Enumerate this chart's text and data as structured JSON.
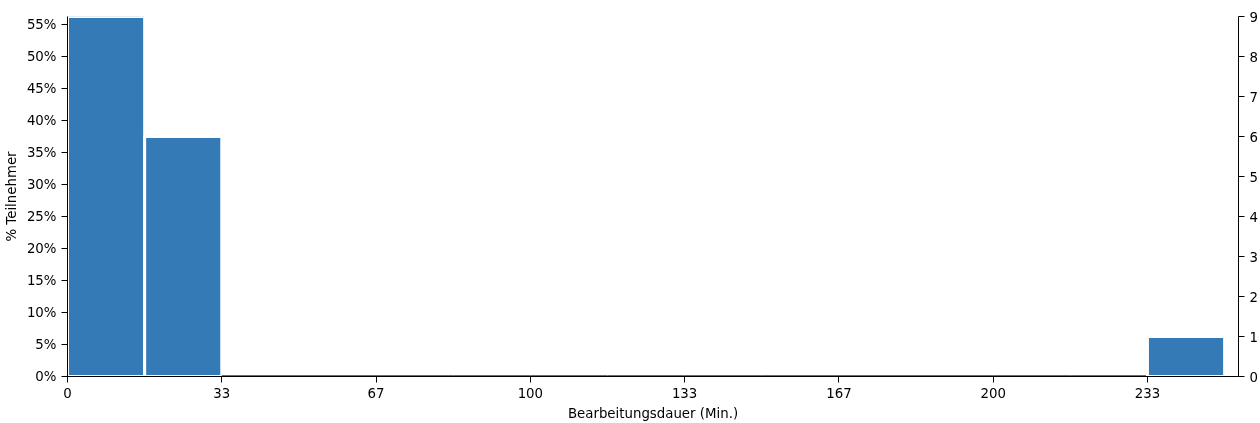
{
  "chart_data": {
    "type": "histogram",
    "xlabel": "Bearbeitungsdauer (Min.)",
    "ylabel": "% Teilnehmer",
    "bins": [
      0,
      16.67,
      33.33,
      50,
      66.67,
      83.33,
      100,
      116.67,
      133.33,
      150,
      166.67,
      183.33,
      200,
      216.67,
      233.33,
      250
    ],
    "values": [
      56.25,
      37.5,
      0,
      0,
      0,
      0,
      0,
      0,
      0,
      0,
      0,
      0,
      0,
      0,
      6.25
    ],
    "color": "#337ab7",
    "xlim": [
      0,
      253
    ],
    "xticks": [
      0,
      {
        "value": 33.33,
        "label": "33"
      },
      {
        "value": 66.67,
        "label": "67"
      },
      100,
      {
        "value": 133.33,
        "label": "133"
      },
      {
        "value": 166.67,
        "label": "167"
      },
      200,
      {
        "value": 233.33,
        "label": "233"
      }
    ],
    "ylim": [
      0,
      56.25
    ],
    "yticks": [
      {
        "value": 0,
        "label": "0%"
      },
      {
        "value": 5,
        "label": "5%"
      },
      {
        "value": 10,
        "label": "10%"
      },
      {
        "value": 15,
        "label": "15%"
      },
      {
        "value": 20,
        "label": "20%"
      },
      {
        "value": 25,
        "label": "25%"
      },
      {
        "value": 30,
        "label": "30%"
      },
      {
        "value": 35,
        "label": "35%"
      },
      {
        "value": 40,
        "label": "40%"
      },
      {
        "value": 45,
        "label": "45%"
      },
      {
        "value": 50,
        "label": "50%"
      },
      {
        "value": 55,
        "label": "55%"
      }
    ],
    "y2lim": [
      0,
      9
    ],
    "y2ticks": [
      0,
      1,
      2,
      3,
      4,
      5,
      6,
      7,
      8,
      9
    ],
    "grid": false
  }
}
